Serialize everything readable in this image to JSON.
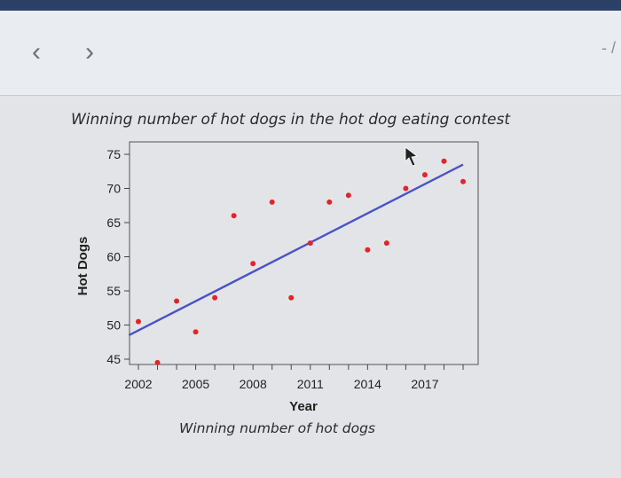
{
  "nav": {
    "back_glyph": "‹",
    "forward_glyph": "›",
    "corner_text": "- /"
  },
  "chart_data": {
    "type": "scatter",
    "title": "Winning number of hot dogs in the hot dog eating contest",
    "xlabel": "Year",
    "ylabel": "Hot Dogs",
    "caption": "Winning number of hot dogs",
    "xlim": [
      2002,
      2019
    ],
    "ylim": [
      43,
      76
    ],
    "x_ticks": [
      2002,
      2005,
      2008,
      2011,
      2014,
      2017
    ],
    "y_ticks": [
      45,
      50,
      55,
      60,
      65,
      70,
      75
    ],
    "grid": false,
    "point_color": "#e0262b",
    "line_color": "#4a52c7",
    "points": [
      {
        "x": 2002,
        "y": 50.5
      },
      {
        "x": 2003,
        "y": 44.5
      },
      {
        "x": 2004,
        "y": 53.5
      },
      {
        "x": 2005,
        "y": 49.0
      },
      {
        "x": 2006,
        "y": 54.0
      },
      {
        "x": 2007,
        "y": 66.0
      },
      {
        "x": 2008,
        "y": 59.0
      },
      {
        "x": 2009,
        "y": 68.0
      },
      {
        "x": 2010,
        "y": 54.0
      },
      {
        "x": 2011,
        "y": 62.0
      },
      {
        "x": 2012,
        "y": 68.0
      },
      {
        "x": 2013,
        "y": 69.0
      },
      {
        "x": 2014,
        "y": 61.0
      },
      {
        "x": 2015,
        "y": 62.0
      },
      {
        "x": 2016,
        "y": 70.0
      },
      {
        "x": 2017,
        "y": 72.0
      },
      {
        "x": 2018,
        "y": 74.0
      },
      {
        "x": 2019,
        "y": 71.0
      }
    ],
    "trend_line": {
      "x": [
        2001.5,
        2019
      ],
      "y": [
        48.5,
        73.5
      ]
    }
  }
}
